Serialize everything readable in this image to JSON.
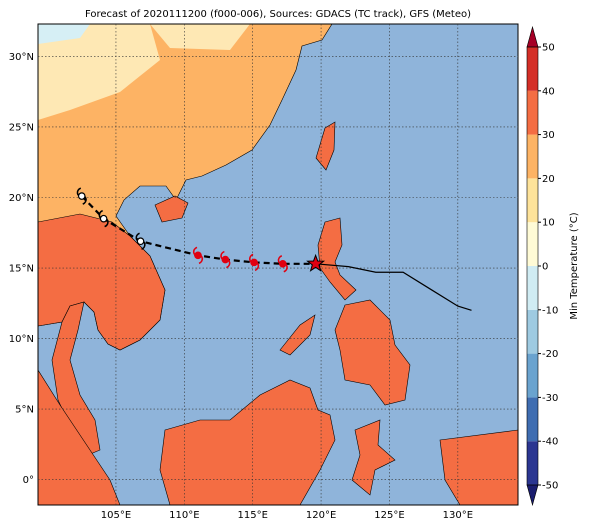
{
  "map": {
    "title": "Forecast of 2020111200 (f000-006), Sources: GDACS (TC track), GFS (Meteo)",
    "lonlim": [
      99.3,
      134.4
    ],
    "latlim": [
      -1.8,
      32.3
    ],
    "lonticks": [
      {
        "value": 105,
        "label": "105°E"
      },
      {
        "value": 110,
        "label": "110°E"
      },
      {
        "value": 115,
        "label": "115°E"
      },
      {
        "value": 120,
        "label": "120°E"
      },
      {
        "value": 125,
        "label": "125°E"
      },
      {
        "value": 130,
        "label": "130°E"
      }
    ],
    "latticks": [
      {
        "value": 0,
        "label": "0°"
      },
      {
        "value": 5,
        "label": "5°N"
      },
      {
        "value": 10,
        "label": "10°N"
      },
      {
        "value": 15,
        "label": "15°N"
      },
      {
        "value": 20,
        "label": "20°N"
      },
      {
        "value": 25,
        "label": "25°N"
      },
      {
        "value": 30,
        "label": "30°N"
      }
    ],
    "grid": true,
    "track": {
      "observed": [
        [
          102.5,
          20.1
        ],
        [
          104.1,
          18.5
        ],
        [
          106.8,
          16.9
        ]
      ],
      "forecast": [
        [
          111.0,
          15.9
        ],
        [
          113.0,
          15.6
        ],
        [
          115.1,
          15.4
        ],
        [
          117.2,
          15.3
        ]
      ],
      "current": [
        119.6,
        15.3
      ],
      "history": [
        [
          122.0,
          15.1
        ],
        [
          124.0,
          14.7
        ],
        [
          126.0,
          14.7
        ],
        [
          128.0,
          13.5
        ],
        [
          130.0,
          12.3
        ],
        [
          131.0,
          12.0
        ]
      ],
      "color": "#e00010"
    },
    "colorbar": {
      "label": "Min Temperature (°C)",
      "ticks": [
        -50,
        -40,
        -30,
        -20,
        -10,
        0,
        10,
        20,
        30,
        40,
        50
      ],
      "colors": [
        "#2b3691",
        "#3f6db1",
        "#6aa3cf",
        "#9ecae1",
        "#d0ecf3",
        "#fffbd6",
        "#fee39a",
        "#fdb364",
        "#f46d43",
        "#d42f27"
      ],
      "under": "#1a1d6e",
      "over": "#a50026"
    }
  }
}
